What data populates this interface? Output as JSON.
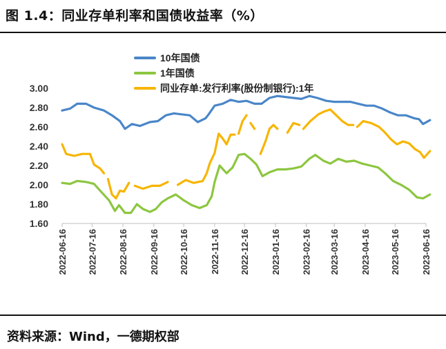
{
  "figure": {
    "title": "图 1.4：同业存单利率和国债收益率（%）",
    "source": "资料来源：Wind，一德期权部"
  },
  "chart_data": {
    "type": "line",
    "title": "",
    "xlabel": "",
    "ylabel": "",
    "ylim": [
      1.6,
      3.0
    ],
    "yticks": [
      "1.60",
      "1.80",
      "2.00",
      "2.20",
      "2.40",
      "2.60",
      "2.80",
      "3.00"
    ],
    "xticks": [
      "2022-06-16",
      "2022-07-16",
      "2022-08-16",
      "2022-09-16",
      "2022-10-16",
      "2022-11-16",
      "2022-12-16",
      "2023-01-16",
      "2023-02-16",
      "2023-03-16",
      "2023-04-16",
      "2023-05-16",
      "2023-06-16"
    ],
    "grid": false,
    "legend": "top",
    "series": [
      {
        "name": "10年国债",
        "color": "#4a86c8",
        "points": [
          [
            "2022-06-16",
            2.77
          ],
          [
            "2022-06-24",
            2.79
          ],
          [
            "2022-07-01",
            2.84
          ],
          [
            "2022-07-10",
            2.84
          ],
          [
            "2022-07-18",
            2.8
          ],
          [
            "2022-07-28",
            2.77
          ],
          [
            "2022-08-05",
            2.72
          ],
          [
            "2022-08-13",
            2.66
          ],
          [
            "2022-08-18",
            2.58
          ],
          [
            "2022-08-25",
            2.63
          ],
          [
            "2022-09-02",
            2.61
          ],
          [
            "2022-09-12",
            2.65
          ],
          [
            "2022-09-20",
            2.66
          ],
          [
            "2022-09-28",
            2.72
          ],
          [
            "2022-10-06",
            2.74
          ],
          [
            "2022-10-14",
            2.73
          ],
          [
            "2022-10-22",
            2.72
          ],
          [
            "2022-10-30",
            2.65
          ],
          [
            "2022-11-07",
            2.69
          ],
          [
            "2022-11-10",
            2.73
          ],
          [
            "2022-11-16",
            2.82
          ],
          [
            "2022-11-24",
            2.84
          ],
          [
            "2022-12-02",
            2.88
          ],
          [
            "2022-12-10",
            2.86
          ],
          [
            "2022-12-18",
            2.87
          ],
          [
            "2022-12-26",
            2.84
          ],
          [
            "2023-01-02",
            2.84
          ],
          [
            "2023-01-10",
            2.9
          ],
          [
            "2023-01-18",
            2.92
          ],
          [
            "2023-01-26",
            2.91
          ],
          [
            "2023-02-03",
            2.9
          ],
          [
            "2023-02-11",
            2.89
          ],
          [
            "2023-02-19",
            2.92
          ],
          [
            "2023-02-27",
            2.9
          ],
          [
            "2023-03-08",
            2.87
          ],
          [
            "2023-03-16",
            2.86
          ],
          [
            "2023-03-24",
            2.86
          ],
          [
            "2023-04-01",
            2.86
          ],
          [
            "2023-04-09",
            2.84
          ],
          [
            "2023-04-17",
            2.82
          ],
          [
            "2023-04-25",
            2.82
          ],
          [
            "2023-05-03",
            2.79
          ],
          [
            "2023-05-11",
            2.75
          ],
          [
            "2023-05-19",
            2.72
          ],
          [
            "2023-05-27",
            2.72
          ],
          [
            "2023-06-04",
            2.69
          ],
          [
            "2023-06-09",
            2.68
          ],
          [
            "2023-06-13",
            2.63
          ],
          [
            "2023-06-20",
            2.67
          ]
        ]
      },
      {
        "name": "1年国债",
        "color": "#8cc63f",
        "points": [
          [
            "2022-06-16",
            2.02
          ],
          [
            "2022-06-24",
            2.01
          ],
          [
            "2022-07-01",
            2.04
          ],
          [
            "2022-07-10",
            2.03
          ],
          [
            "2022-07-18",
            2.01
          ],
          [
            "2022-07-25",
            1.93
          ],
          [
            "2022-08-02",
            1.84
          ],
          [
            "2022-08-08",
            1.73
          ],
          [
            "2022-08-12",
            1.79
          ],
          [
            "2022-08-18",
            1.71
          ],
          [
            "2022-08-24",
            1.71
          ],
          [
            "2022-08-30",
            1.8
          ],
          [
            "2022-09-05",
            1.75
          ],
          [
            "2022-09-12",
            1.72
          ],
          [
            "2022-09-18",
            1.75
          ],
          [
            "2022-09-24",
            1.82
          ],
          [
            "2022-09-30",
            1.86
          ],
          [
            "2022-10-08",
            1.9
          ],
          [
            "2022-10-16",
            1.84
          ],
          [
            "2022-10-24",
            1.79
          ],
          [
            "2022-11-01",
            1.76
          ],
          [
            "2022-11-08",
            1.79
          ],
          [
            "2022-11-13",
            1.88
          ],
          [
            "2022-11-16",
            2.03
          ],
          [
            "2022-11-21",
            2.2
          ],
          [
            "2022-11-28",
            2.12
          ],
          [
            "2022-12-04",
            2.18
          ],
          [
            "2022-12-10",
            2.31
          ],
          [
            "2022-12-16",
            2.32
          ],
          [
            "2022-12-22",
            2.27
          ],
          [
            "2022-12-28",
            2.21
          ],
          [
            "2023-01-03",
            2.09
          ],
          [
            "2023-01-10",
            2.13
          ],
          [
            "2023-01-18",
            2.16
          ],
          [
            "2023-01-26",
            2.16
          ],
          [
            "2023-02-03",
            2.17
          ],
          [
            "2023-02-11",
            2.19
          ],
          [
            "2023-02-19",
            2.27
          ],
          [
            "2023-02-25",
            2.31
          ],
          [
            "2023-03-05",
            2.25
          ],
          [
            "2023-03-12",
            2.22
          ],
          [
            "2023-03-20",
            2.27
          ],
          [
            "2023-03-28",
            2.24
          ],
          [
            "2023-04-05",
            2.25
          ],
          [
            "2023-04-13",
            2.22
          ],
          [
            "2023-04-21",
            2.2
          ],
          [
            "2023-04-29",
            2.18
          ],
          [
            "2023-05-06",
            2.12
          ],
          [
            "2023-05-14",
            2.04
          ],
          [
            "2023-05-22",
            2.0
          ],
          [
            "2023-05-30",
            1.95
          ],
          [
            "2023-06-07",
            1.87
          ],
          [
            "2023-06-13",
            1.86
          ],
          [
            "2023-06-20",
            1.9
          ]
        ]
      },
      {
        "name": "同业存单:发行利率(股份制银行):1年",
        "color": "#f7b500",
        "segments": [
          [
            [
              "2022-06-16",
              2.42
            ],
            [
              "2022-06-20",
              2.32
            ],
            [
              "2022-06-28",
              2.3
            ],
            [
              "2022-07-06",
              2.32
            ],
            [
              "2022-07-14",
              2.32
            ],
            [
              "2022-07-18",
              2.21
            ],
            [
              "2022-07-24",
              2.17
            ],
            [
              "2022-07-28",
              2.12
            ]
          ],
          [
            [
              "2022-08-01",
              2.06
            ],
            [
              "2022-08-05",
              1.9
            ],
            [
              "2022-08-09",
              1.86
            ],
            [
              "2022-08-13",
              1.94
            ],
            [
              "2022-08-17",
              1.93
            ],
            [
              "2022-08-22",
              2.02
            ]
          ],
          [
            [
              "2022-08-28",
              1.99
            ],
            [
              "2022-09-05",
              1.96
            ],
            [
              "2022-09-14",
              1.99
            ],
            [
              "2022-09-22",
              1.99
            ],
            [
              "2022-09-30",
              2.03
            ]
          ],
          [
            [
              "2022-10-10",
              2.0
            ],
            [
              "2022-10-18",
              2.05
            ],
            [
              "2022-10-26",
              2.02
            ],
            [
              "2022-11-04",
              2.04
            ],
            [
              "2022-11-08",
              2.12
            ],
            [
              "2022-11-11",
              2.22
            ],
            [
              "2022-11-16",
              2.33
            ],
            [
              "2022-11-20",
              2.53
            ],
            [
              "2022-11-24",
              2.48
            ],
            [
              "2022-11-28",
              2.42
            ],
            [
              "2022-12-02",
              2.52
            ],
            [
              "2022-12-06",
              2.52
            ]
          ],
          [
            [
              "2022-12-10",
              2.53
            ],
            [
              "2022-12-14",
              2.66
            ],
            [
              "2022-12-18",
              2.72
            ]
          ],
          [
            [
              "2022-12-22",
              2.64
            ],
            [
              "2022-12-26",
              2.58
            ]
          ],
          [
            [
              "2023-01-01",
              2.32
            ],
            [
              "2023-01-06",
              2.45
            ],
            [
              "2023-01-10",
              2.58
            ],
            [
              "2023-01-14",
              2.62
            ],
            [
              "2023-01-18",
              2.58
            ]
          ],
          [
            [
              "2023-01-28",
              2.54
            ],
            [
              "2023-02-03",
              2.64
            ],
            [
              "2023-02-09",
              2.62
            ]
          ],
          [
            [
              "2023-02-13",
              2.58
            ],
            [
              "2023-02-20",
              2.66
            ],
            [
              "2023-02-28",
              2.73
            ],
            [
              "2023-03-06",
              2.76
            ],
            [
              "2023-03-12",
              2.78
            ],
            [
              "2023-03-18",
              2.72
            ],
            [
              "2023-03-24",
              2.66
            ],
            [
              "2023-03-30",
              2.62
            ],
            [
              "2023-04-04",
              2.62
            ]
          ],
          [
            [
              "2023-04-08",
              2.6
            ],
            [
              "2023-04-14",
              2.66
            ],
            [
              "2023-04-22",
              2.64
            ],
            [
              "2023-04-30",
              2.6
            ],
            [
              "2023-05-06",
              2.54
            ],
            [
              "2023-05-12",
              2.47
            ],
            [
              "2023-05-18",
              2.42
            ],
            [
              "2023-05-24",
              2.45
            ],
            [
              "2023-05-30",
              2.43
            ],
            [
              "2023-06-05",
              2.37
            ],
            [
              "2023-06-10",
              2.34
            ],
            [
              "2023-06-14",
              2.28
            ],
            [
              "2023-06-20",
              2.35
            ]
          ]
        ]
      }
    ]
  }
}
